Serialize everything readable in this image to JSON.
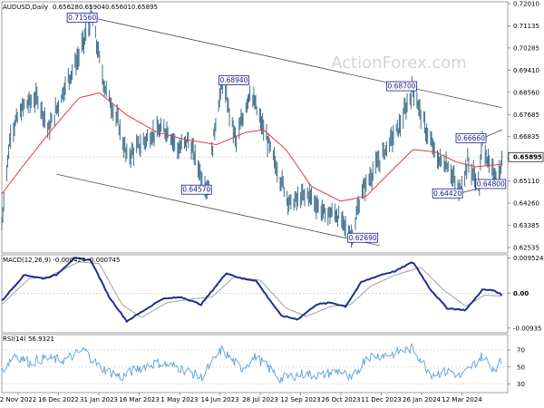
{
  "chart_data": {
    "type": "line",
    "symbol": "AUDUSD,Daily",
    "ohlc": [
      "0.65628",
      "0.65904",
      "0.65601",
      "0.65895"
    ],
    "watermark": "ActionForex.com",
    "price_panel": {
      "ylim": [
        0.62,
        0.722
      ],
      "y_ticks": [
        "0.72010",
        "0.71135",
        "0.70285",
        "0.69410",
        "0.68560",
        "0.67685",
        "0.66835",
        "0.65960",
        "0.65110",
        "0.64260",
        "0.63385",
        "0.62535"
      ],
      "last_price": "0.65895",
      "annotations": [
        {
          "label": "0.71560",
          "date": "2023-02-02",
          "value": 0.7156
        },
        {
          "label": "0.68940",
          "date": "2023-06-16",
          "value": 0.6894
        },
        {
          "label": "0.64570",
          "date": "2023-06-01",
          "value": 0.6457
        },
        {
          "label": "0.62690",
          "date": "2023-10-26",
          "value": 0.6269
        },
        {
          "label": "0.68700",
          "date": "2023-12-28",
          "value": 0.687
        },
        {
          "label": "0.66660",
          "date": "2024-03-08",
          "value": 0.6666
        },
        {
          "label": "0.64420",
          "date": "2024-02-13",
          "value": 0.6442
        },
        {
          "label": "0.64800",
          "date": "2024-03-05",
          "value": 0.648
        }
      ]
    },
    "macd_panel": {
      "title": "MACD(12,26,9) -0.000424 -0.000745",
      "ylim": [
        -0.0106,
        0.0104
      ],
      "y_ticks": [
        "0.009524",
        "0.00",
        "-0.00935"
      ]
    },
    "rsi_panel": {
      "title": "RSI(14) 56.9321",
      "ylim": [
        20,
        88
      ],
      "y_ticks": [
        "70",
        "50",
        "30"
      ],
      "level_lines": [
        70,
        50,
        30
      ]
    },
    "x_labels": [
      "2 Nov 2022",
      "16 Dec 2022",
      "31 Jan 2023",
      "16 Mar 2023",
      "1 May 2023",
      "14 Jun 2023",
      "28 Jul 2023",
      "12 Sep 2023",
      "26 Oct 2023",
      "11 Dec 2023",
      "26 Jan 2024",
      "12 Mar 2024"
    ],
    "price_anchors": [
      [
        "2022-11-02",
        0.631
      ],
      [
        "2022-11-04",
        0.642
      ],
      [
        "2022-11-11",
        0.669
      ],
      [
        "2022-11-25",
        0.68
      ],
      [
        "2022-12-09",
        0.683
      ],
      [
        "2022-12-20",
        0.67
      ],
      [
        "2023-01-06",
        0.688
      ],
      [
        "2023-01-20",
        0.7
      ],
      [
        "2023-02-02",
        0.7156
      ],
      [
        "2023-02-15",
        0.688
      ],
      [
        "2023-03-01",
        0.673
      ],
      [
        "2023-03-10",
        0.659
      ],
      [
        "2023-03-24",
        0.664
      ],
      [
        "2023-04-07",
        0.669
      ],
      [
        "2023-04-21",
        0.67
      ],
      [
        "2023-05-02",
        0.662
      ],
      [
        "2023-05-12",
        0.666
      ],
      [
        "2023-05-25",
        0.652
      ],
      [
        "2023-06-01",
        0.6457
      ],
      [
        "2023-06-09",
        0.674
      ],
      [
        "2023-06-16",
        0.6894
      ],
      [
        "2023-06-30",
        0.665
      ],
      [
        "2023-07-14",
        0.686
      ],
      [
        "2023-07-28",
        0.67
      ],
      [
        "2023-08-10",
        0.655
      ],
      [
        "2023-08-24",
        0.64
      ],
      [
        "2023-09-12",
        0.644
      ],
      [
        "2023-09-28",
        0.636
      ],
      [
        "2023-10-10",
        0.636
      ],
      [
        "2023-10-26",
        0.6269
      ],
      [
        "2023-11-06",
        0.645
      ],
      [
        "2023-11-20",
        0.655
      ],
      [
        "2023-12-01",
        0.663
      ],
      [
        "2023-12-15",
        0.672
      ],
      [
        "2023-12-28",
        0.687
      ],
      [
        "2024-01-10",
        0.67
      ],
      [
        "2024-01-22",
        0.658
      ],
      [
        "2024-02-02",
        0.656
      ],
      [
        "2024-02-13",
        0.6442
      ],
      [
        "2024-02-22",
        0.657
      ],
      [
        "2024-03-01",
        0.65
      ],
      [
        "2024-03-05",
        0.648
      ],
      [
        "2024-03-08",
        0.6666
      ],
      [
        "2024-03-15",
        0.655
      ],
      [
        "2024-03-20",
        0.652
      ],
      [
        "2024-03-27",
        0.653
      ],
      [
        "2024-03-28",
        0.659
      ]
    ],
    "ma_anchors": [
      [
        "2022-11-02",
        0.644
      ],
      [
        "2022-11-25",
        0.656
      ],
      [
        "2022-12-23",
        0.67
      ],
      [
        "2023-01-20",
        0.683
      ],
      [
        "2023-02-10",
        0.685
      ],
      [
        "2023-03-10",
        0.676
      ],
      [
        "2023-04-10",
        0.669
      ],
      [
        "2023-05-10",
        0.666
      ],
      [
        "2023-06-10",
        0.664
      ],
      [
        "2023-07-10",
        0.669
      ],
      [
        "2023-07-28",
        0.67
      ],
      [
        "2023-08-20",
        0.662
      ],
      [
        "2023-09-15",
        0.647
      ],
      [
        "2023-10-15",
        0.641
      ],
      [
        "2023-11-10",
        0.643
      ],
      [
        "2023-12-05",
        0.653
      ],
      [
        "2023-12-28",
        0.662
      ],
      [
        "2024-01-20",
        0.661
      ],
      [
        "2024-02-10",
        0.657
      ],
      [
        "2024-03-01",
        0.655
      ],
      [
        "2024-03-28",
        0.656
      ]
    ],
    "macd_anchors": [
      [
        "2022-11-02",
        -0.002
      ],
      [
        "2022-11-25",
        0.005
      ],
      [
        "2022-12-15",
        0.004
      ],
      [
        "2022-12-28",
        0.005
      ],
      [
        "2023-01-15",
        0.0095
      ],
      [
        "2023-02-01",
        0.009
      ],
      [
        "2023-02-20",
        -0.001
      ],
      [
        "2023-03-10",
        -0.0075
      ],
      [
        "2023-03-25",
        -0.005
      ],
      [
        "2023-04-15",
        -0.0015
      ],
      [
        "2023-05-05",
        -0.001
      ],
      [
        "2023-05-25",
        -0.003
      ],
      [
        "2023-06-20",
        0.0055
      ],
      [
        "2023-07-05",
        0.004
      ],
      [
        "2023-07-20",
        0.0035
      ],
      [
        "2023-08-15",
        -0.006
      ],
      [
        "2023-09-01",
        -0.007
      ],
      [
        "2023-09-20",
        -0.003
      ],
      [
        "2023-10-05",
        -0.0025
      ],
      [
        "2023-10-20",
        -0.0035
      ],
      [
        "2023-11-05",
        0.003
      ],
      [
        "2023-11-25",
        0.005
      ],
      [
        "2023-12-10",
        0.006
      ],
      [
        "2023-12-28",
        0.0085
      ],
      [
        "2024-01-15",
        0.001
      ],
      [
        "2024-02-01",
        -0.004
      ],
      [
        "2024-02-20",
        -0.0045
      ],
      [
        "2024-03-08",
        0.001
      ],
      [
        "2024-03-20",
        0.0008
      ],
      [
        "2024-03-28",
        -0.0004
      ]
    ],
    "signal_anchors": [
      [
        "2022-11-02",
        -0.003
      ],
      [
        "2022-11-30",
        0.004
      ],
      [
        "2022-12-20",
        0.0045
      ],
      [
        "2023-01-20",
        0.0085
      ],
      [
        "2023-02-10",
        0.008
      ],
      [
        "2023-03-05",
        -0.003
      ],
      [
        "2023-03-25",
        -0.0065
      ],
      [
        "2023-04-20",
        -0.0025
      ],
      [
        "2023-05-15",
        -0.0015
      ],
      [
        "2023-06-05",
        -0.001
      ],
      [
        "2023-06-28",
        0.0045
      ],
      [
        "2023-07-25",
        0.0035
      ],
      [
        "2023-08-20",
        -0.004
      ],
      [
        "2023-09-10",
        -0.0062
      ],
      [
        "2023-10-05",
        -0.0035
      ],
      [
        "2023-10-25",
        -0.003
      ],
      [
        "2023-11-15",
        0.002
      ],
      [
        "2023-12-10",
        0.005
      ],
      [
        "2024-01-05",
        0.007
      ],
      [
        "2024-01-28",
        0.001
      ],
      [
        "2024-02-20",
        -0.0035
      ],
      [
        "2024-03-10",
        -0.0005
      ],
      [
        "2024-03-28",
        -0.0007
      ]
    ],
    "rsi_anchors": [
      [
        "2022-11-02",
        45
      ],
      [
        "2022-11-15",
        65
      ],
      [
        "2022-12-01",
        55
      ],
      [
        "2022-12-15",
        60
      ],
      [
        "2023-01-05",
        58
      ],
      [
        "2023-01-25",
        70
      ],
      [
        "2023-02-10",
        50
      ],
      [
        "2023-03-05",
        38
      ],
      [
        "2023-03-20",
        48
      ],
      [
        "2023-04-10",
        55
      ],
      [
        "2023-05-01",
        50
      ],
      [
        "2023-05-25",
        38
      ],
      [
        "2023-06-15",
        70
      ],
      [
        "2023-07-05",
        48
      ],
      [
        "2023-07-20",
        62
      ],
      [
        "2023-08-15",
        36
      ],
      [
        "2023-09-05",
        42
      ],
      [
        "2023-09-25",
        40
      ],
      [
        "2023-10-15",
        46
      ],
      [
        "2023-10-26",
        34
      ],
      [
        "2023-11-10",
        62
      ],
      [
        "2023-12-05",
        65
      ],
      [
        "2023-12-28",
        72
      ],
      [
        "2024-01-15",
        42
      ],
      [
        "2024-02-05",
        45
      ],
      [
        "2024-02-15",
        38
      ],
      [
        "2024-03-08",
        63
      ],
      [
        "2024-03-20",
        48
      ],
      [
        "2024-03-28",
        57
      ]
    ],
    "trendlines": [
      {
        "name": "channel-top",
        "from": [
          "2023-02-02",
          0.7156
        ],
        "to": [
          "2024-03-28",
          0.679
        ]
      },
      {
        "name": "channel-bottom",
        "from": [
          "2022-12-28",
          0.652
        ],
        "to": [
          "2023-11-24",
          0.623
        ]
      },
      {
        "name": "short-top",
        "from": [
          "2024-03-08",
          0.6666
        ],
        "to": [
          "2024-03-28",
          0.67
        ]
      },
      {
        "name": "short-bottom",
        "from": [
          "2024-02-13",
          0.6442
        ],
        "to": [
          "2024-03-28",
          0.6485
        ]
      }
    ],
    "colors": {
      "bars": "#3f6f8c",
      "ma": "#e23b3b",
      "macd": "#1f2f8f",
      "signal": "#a0a0a0",
      "rsi": "#5aa2d8",
      "label_box": "#1a1a9a"
    }
  }
}
